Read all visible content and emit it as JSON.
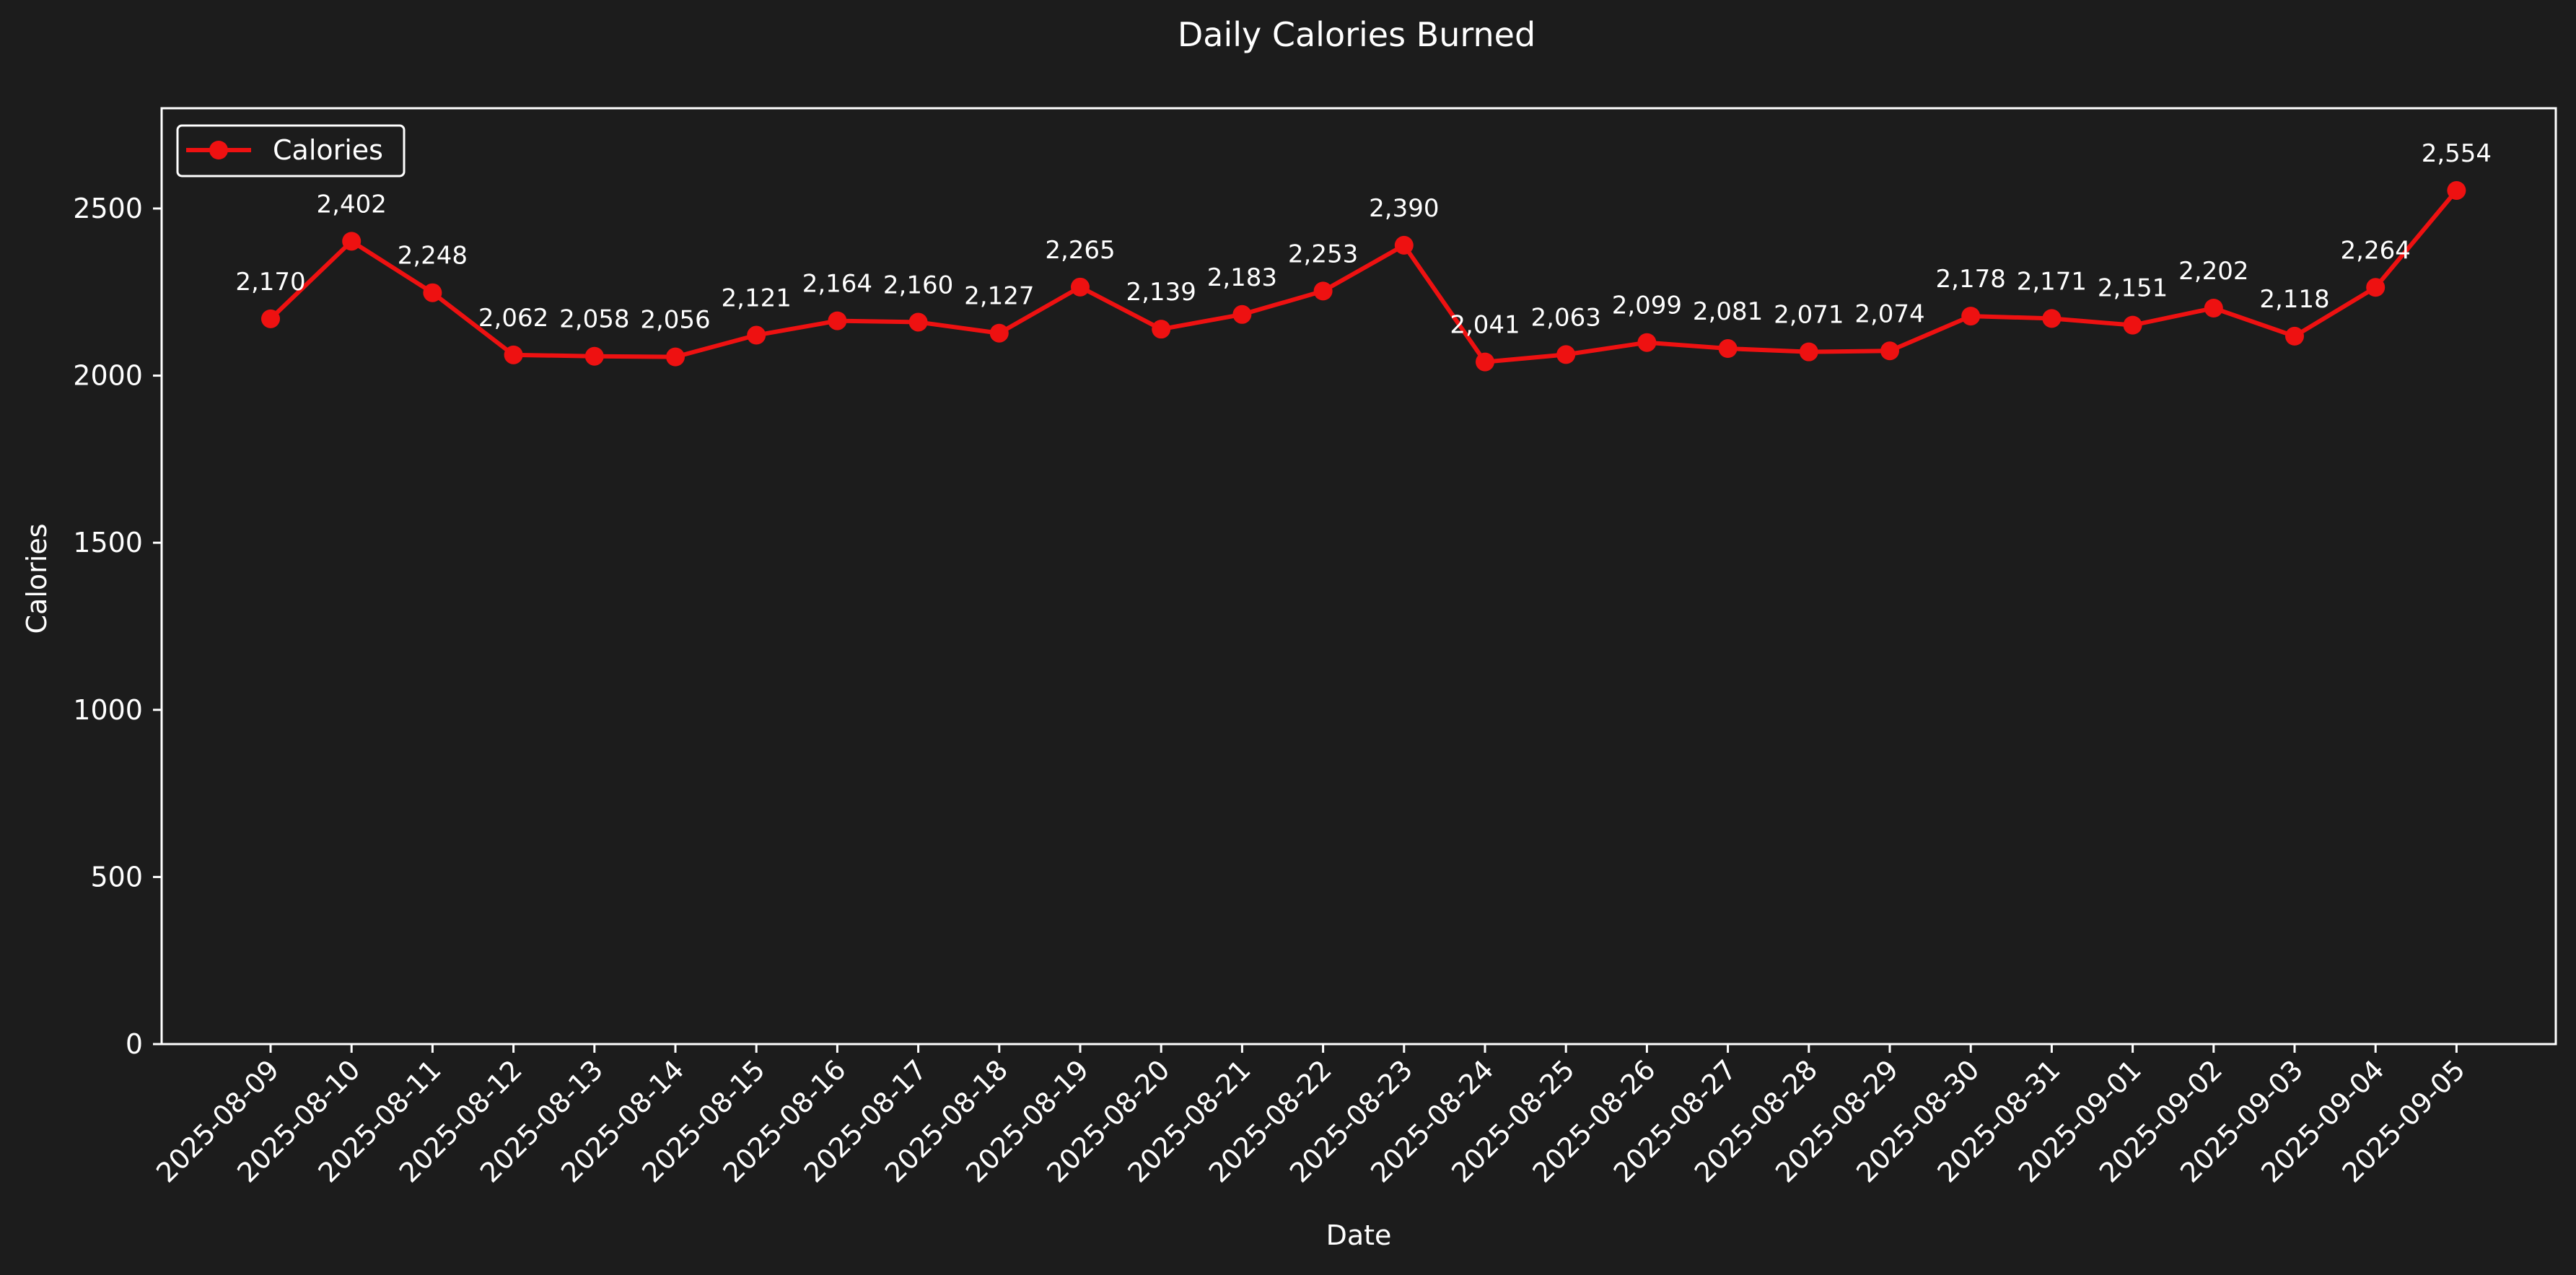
{
  "chart_data": {
    "type": "line",
    "title": "Daily Calories Burned",
    "xlabel": "Date",
    "ylabel": "Calories",
    "ylim": [
      0,
      2800
    ],
    "yticks": [
      0,
      500,
      1000,
      1500,
      2000,
      2500
    ],
    "grid": false,
    "legend_position": "top-left",
    "categories": [
      "2025-08-09",
      "2025-08-10",
      "2025-08-11",
      "2025-08-12",
      "2025-08-13",
      "2025-08-14",
      "2025-08-15",
      "2025-08-16",
      "2025-08-17",
      "2025-08-18",
      "2025-08-19",
      "2025-08-20",
      "2025-08-21",
      "2025-08-22",
      "2025-08-23",
      "2025-08-24",
      "2025-08-25",
      "2025-08-26",
      "2025-08-27",
      "2025-08-28",
      "2025-08-29",
      "2025-08-30",
      "2025-08-31",
      "2025-09-01",
      "2025-09-02",
      "2025-09-03",
      "2025-09-04",
      "2025-09-05"
    ],
    "series": [
      {
        "name": "Calories",
        "color": "#ee1111",
        "values": [
          2170,
          2402,
          2248,
          2062,
          2058,
          2056,
          2121,
          2164,
          2160,
          2127,
          2265,
          2139,
          2183,
          2253,
          2390,
          2041,
          2063,
          2099,
          2081,
          2071,
          2074,
          2178,
          2171,
          2151,
          2202,
          2118,
          2264,
          2554
        ],
        "labels": [
          "2,170",
          "2,402",
          "2,248",
          "2,062",
          "2,058",
          "2,056",
          "2,121",
          "2,164",
          "2,160",
          "2,127",
          "2,265",
          "2,139",
          "2,183",
          "2,253",
          "2,390",
          "2,041",
          "2,063",
          "2,099",
          "2,081",
          "2,071",
          "2,074",
          "2,178",
          "2,171",
          "2,151",
          "2,202",
          "2,118",
          "2,264",
          "2,554"
        ]
      }
    ],
    "colors": {
      "background": "#1c1c1c",
      "axes": "#ffffff",
      "text": "#ffffff"
    }
  }
}
